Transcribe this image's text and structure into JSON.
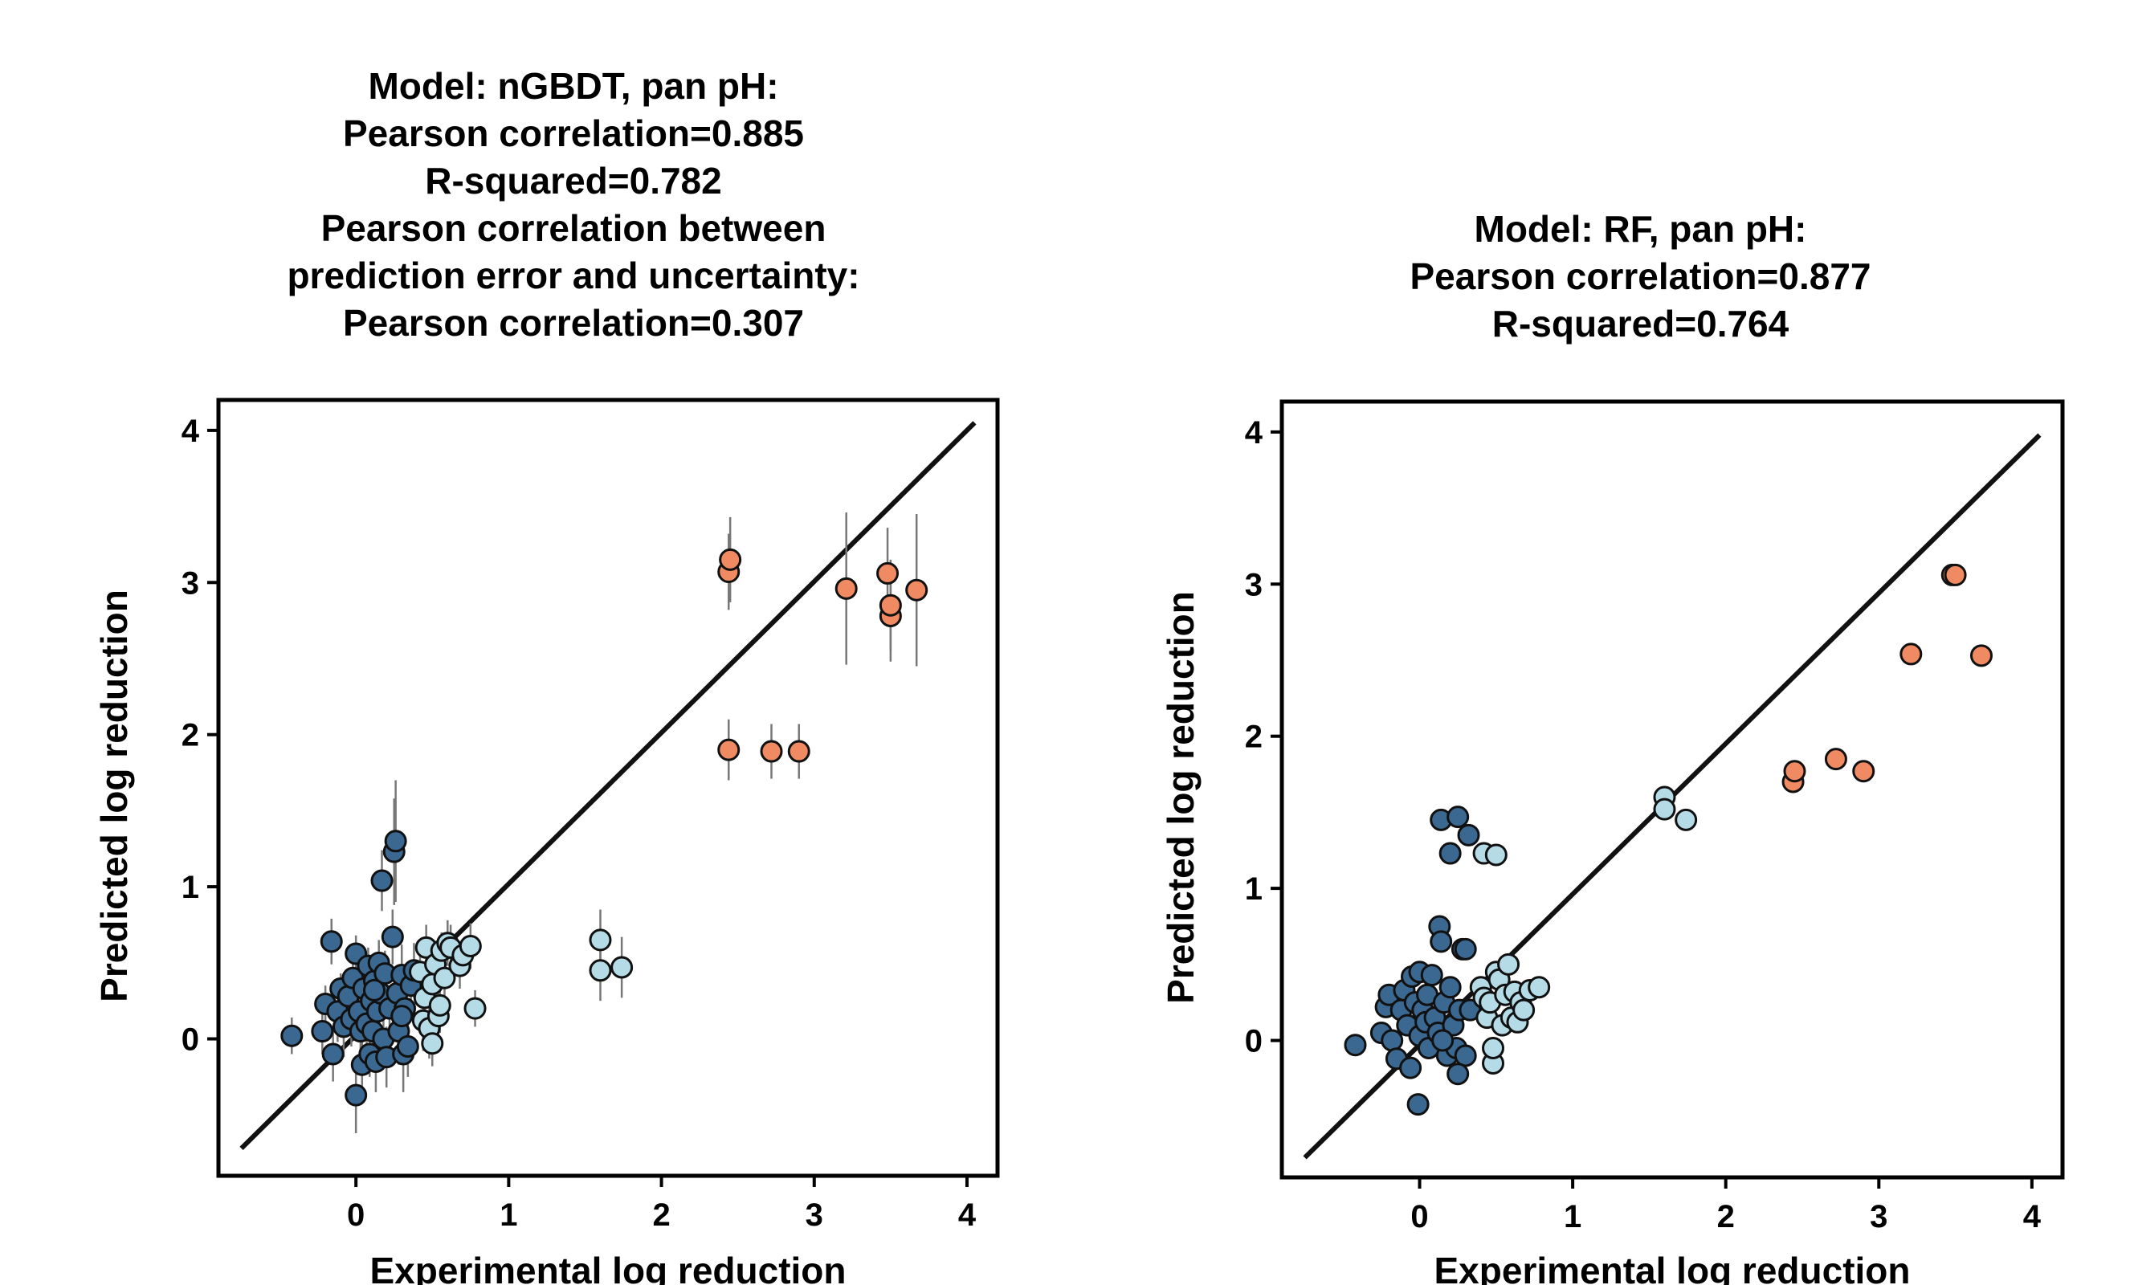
{
  "chart_data": [
    {
      "type": "scatter",
      "title_lines": [
        "Model: nGBDT, pan pH:",
        "Pearson correlation=0.885",
        "R-squared=0.782",
        "Pearson correlation between",
        "prediction error and uncertainty:",
        "Pearson correlation=0.307"
      ],
      "xlabel": "Experimental log reduction",
      "ylabel": "Predicted log reduction",
      "xlim": [
        -0.9,
        4.2
      ],
      "ylim": [
        -0.9,
        4.2
      ],
      "xticks": [
        0,
        1,
        2,
        3,
        4
      ],
      "yticks": [
        0,
        1,
        2,
        3,
        4
      ],
      "identity_line": [
        [
          -0.75,
          -0.72
        ],
        [
          4.05,
          4.05
        ]
      ],
      "colors": {
        "dark": "#3b6891",
        "light": "#b5dbe6",
        "orange": "#f08a62",
        "edge": "#111111",
        "error_bar": "#777777"
      },
      "series": [
        {
          "name": "dark",
          "points": [
            [
              -0.42,
              0.02,
              0.12
            ],
            [
              -0.22,
              0.05,
              0.15
            ],
            [
              -0.2,
              0.23,
              0.12
            ],
            [
              -0.16,
              0.64,
              0.15
            ],
            [
              -0.15,
              -0.1,
              0.18
            ],
            [
              -0.12,
              0.18,
              0.2
            ],
            [
              -0.1,
              0.33,
              0.1
            ],
            [
              -0.08,
              0.08,
              0.2
            ],
            [
              -0.05,
              0.28,
              0.1
            ],
            [
              -0.03,
              0.13,
              0.18
            ],
            [
              -0.02,
              0.4,
              0.15
            ],
            [
              0.0,
              0.56,
              0.12
            ],
            [
              0.0,
              -0.37,
              0.25
            ],
            [
              0.02,
              0.18,
              0.2
            ],
            [
              0.03,
              0.05,
              0.22
            ],
            [
              0.04,
              -0.17,
              0.22
            ],
            [
              0.05,
              0.33,
              0.15
            ],
            [
              0.07,
              0.1,
              0.15
            ],
            [
              0.08,
              0.48,
              0.12
            ],
            [
              0.09,
              -0.1,
              0.15
            ],
            [
              0.1,
              0.25,
              0.2
            ],
            [
              0.11,
              0.05,
              0.18
            ],
            [
              0.12,
              0.38,
              0.15
            ],
            [
              0.13,
              -0.15,
              0.2
            ],
            [
              0.14,
              0.18,
              0.12
            ],
            [
              0.15,
              0.5,
              0.15
            ],
            [
              0.16,
              0.3,
              0.1
            ],
            [
              0.17,
              1.04,
              0.2
            ],
            [
              0.18,
              0.0,
              0.2
            ],
            [
              0.19,
              0.43,
              0.15
            ],
            [
              0.2,
              -0.12,
              0.2
            ],
            [
              0.22,
              0.2,
              0.15
            ],
            [
              0.24,
              0.67,
              0.18
            ],
            [
              0.25,
              1.23,
              0.35
            ],
            [
              0.26,
              1.3,
              0.4
            ],
            [
              0.27,
              0.3,
              0.15
            ],
            [
              0.28,
              0.05,
              0.22
            ],
            [
              0.3,
              0.42,
              0.2
            ],
            [
              0.31,
              -0.1,
              0.25
            ],
            [
              0.32,
              0.2,
              0.15
            ],
            [
              0.34,
              -0.05,
              0.2
            ],
            [
              0.36,
              0.35,
              0.15
            ],
            [
              0.38,
              0.45,
              0.18
            ],
            [
              0.3,
              0.15,
              0.2
            ],
            [
              0.12,
              0.32,
              0.1
            ]
          ]
        },
        {
          "name": "light",
          "points": [
            [
              0.42,
              0.44,
              0.15
            ],
            [
              0.44,
              0.12,
              0.2
            ],
            [
              0.45,
              0.27,
              0.15
            ],
            [
              0.46,
              0.6,
              0.15
            ],
            [
              0.48,
              0.07,
              0.2
            ],
            [
              0.5,
              0.36,
              0.1
            ],
            [
              0.5,
              -0.03,
              0.15
            ],
            [
              0.52,
              0.49,
              0.15
            ],
            [
              0.54,
              0.15,
              0.2
            ],
            [
              0.55,
              0.22,
              0.18
            ],
            [
              0.56,
              0.58,
              0.12
            ],
            [
              0.58,
              0.4,
              0.12
            ],
            [
              0.6,
              0.63,
              0.15
            ],
            [
              0.62,
              0.6,
              0.15
            ],
            [
              0.68,
              0.48,
              0.15
            ],
            [
              0.7,
              0.55,
              0.1
            ],
            [
              0.75,
              0.61,
              0.15
            ],
            [
              0.78,
              0.2,
              0.12
            ],
            [
              1.6,
              0.65,
              0.2
            ],
            [
              1.6,
              0.45,
              0.2
            ],
            [
              1.74,
              0.47,
              0.2
            ]
          ]
        },
        {
          "name": "orange",
          "points": [
            [
              2.44,
              3.07,
              0.25
            ],
            [
              2.45,
              3.15,
              0.28
            ],
            [
              2.44,
              1.9,
              0.2
            ],
            [
              2.72,
              1.89,
              0.18
            ],
            [
              2.9,
              1.89,
              0.18
            ],
            [
              3.21,
              2.96,
              0.5
            ],
            [
              3.48,
              3.06,
              0.3
            ],
            [
              3.5,
              2.78,
              0.3
            ],
            [
              3.5,
              2.85,
              0.3
            ],
            [
              3.67,
              2.95,
              0.5
            ]
          ]
        }
      ]
    },
    {
      "type": "scatter",
      "title_lines": [
        "Model: RF, pan pH:",
        "Pearson correlation=0.877",
        "R-squared=0.764"
      ],
      "xlabel": "Experimental log reduction",
      "ylabel": "Predicted log reduction",
      "xlim": [
        -0.9,
        4.2
      ],
      "ylim": [
        -0.9,
        4.2
      ],
      "xticks": [
        0,
        1,
        2,
        3,
        4
      ],
      "yticks": [
        0,
        1,
        2,
        3,
        4
      ],
      "identity_line": [
        [
          -0.75,
          -0.77
        ],
        [
          4.05,
          3.98
        ]
      ],
      "colors": {
        "dark": "#3b6891",
        "light": "#b5dbe6",
        "orange": "#f08a62",
        "edge": "#111111",
        "error_bar": "#777777"
      },
      "series": [
        {
          "name": "dark",
          "points": [
            [
              -0.42,
              -0.03
            ],
            [
              -0.25,
              0.05
            ],
            [
              -0.22,
              0.22
            ],
            [
              -0.2,
              0.3
            ],
            [
              -0.18,
              0.0
            ],
            [
              -0.15,
              -0.12
            ],
            [
              -0.12,
              0.2
            ],
            [
              -0.1,
              0.33
            ],
            [
              -0.08,
              0.1
            ],
            [
              -0.06,
              -0.18
            ],
            [
              -0.05,
              0.42
            ],
            [
              -0.03,
              0.25
            ],
            [
              0.0,
              0.03
            ],
            [
              0.0,
              0.45
            ],
            [
              -0.01,
              -0.42
            ],
            [
              0.02,
              0.2
            ],
            [
              0.04,
              0.12
            ],
            [
              0.05,
              0.3
            ],
            [
              0.06,
              -0.05
            ],
            [
              0.08,
              0.43
            ],
            [
              0.1,
              0.15
            ],
            [
              0.12,
              0.05
            ],
            [
              0.13,
              0.75
            ],
            [
              0.14,
              0.65
            ],
            [
              0.14,
              1.45
            ],
            [
              0.16,
              0.25
            ],
            [
              0.18,
              -0.1
            ],
            [
              0.2,
              1.23
            ],
            [
              0.2,
              0.35
            ],
            [
              0.22,
              0.1
            ],
            [
              0.24,
              -0.05
            ],
            [
              0.25,
              1.47
            ],
            [
              0.26,
              0.2
            ],
            [
              0.28,
              0.6
            ],
            [
              0.3,
              -0.1
            ],
            [
              0.3,
              0.6
            ],
            [
              0.32,
              1.35
            ],
            [
              0.33,
              0.2
            ],
            [
              0.25,
              -0.22
            ],
            [
              0.15,
              0.0
            ]
          ]
        },
        {
          "name": "light",
          "points": [
            [
              0.4,
              0.35
            ],
            [
              0.42,
              0.28
            ],
            [
              0.42,
              1.23
            ],
            [
              0.44,
              0.15
            ],
            [
              0.46,
              0.25
            ],
            [
              0.48,
              -0.15
            ],
            [
              0.48,
              -0.05
            ],
            [
              0.5,
              1.22
            ],
            [
              0.5,
              0.45
            ],
            [
              0.52,
              0.4
            ],
            [
              0.54,
              0.1
            ],
            [
              0.56,
              0.3
            ],
            [
              0.58,
              0.5
            ],
            [
              0.6,
              0.15
            ],
            [
              0.62,
              0.32
            ],
            [
              0.64,
              0.12
            ],
            [
              0.66,
              0.25
            ],
            [
              0.68,
              0.2
            ],
            [
              0.72,
              0.33
            ],
            [
              0.78,
              0.35
            ],
            [
              1.6,
              1.6
            ],
            [
              1.6,
              1.52
            ],
            [
              1.74,
              1.45
            ]
          ]
        },
        {
          "name": "orange",
          "points": [
            [
              2.44,
              1.7
            ],
            [
              2.45,
              1.77
            ],
            [
              2.72,
              1.85
            ],
            [
              2.9,
              1.77
            ],
            [
              3.21,
              2.54
            ],
            [
              3.48,
              3.06
            ],
            [
              3.5,
              3.06
            ],
            [
              3.67,
              2.53
            ]
          ]
        }
      ]
    }
  ]
}
